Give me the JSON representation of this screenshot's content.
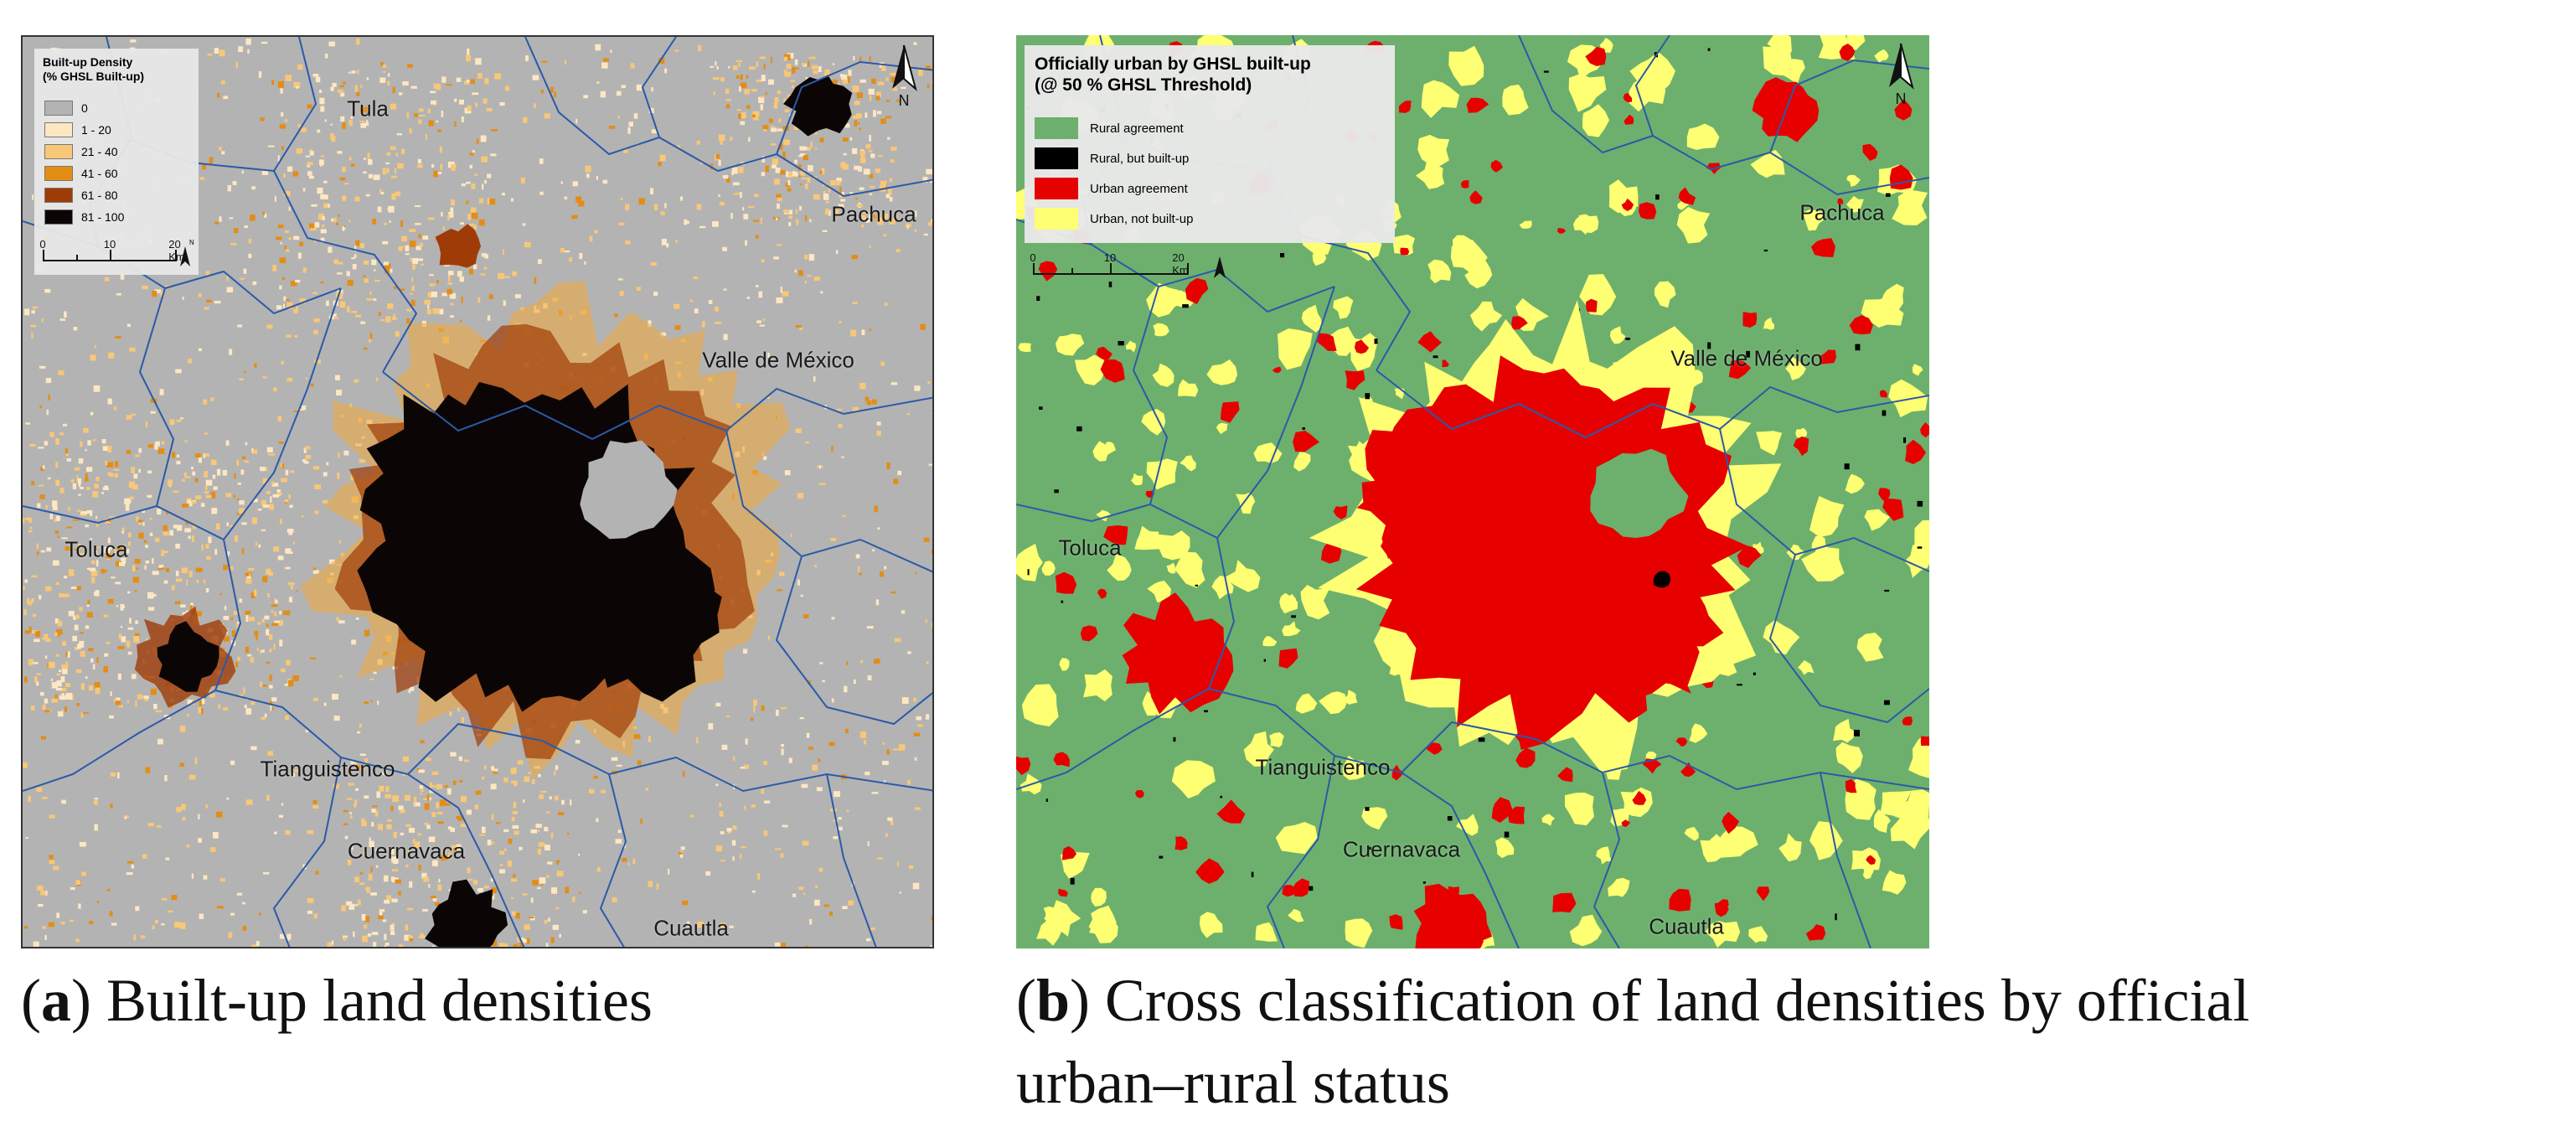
{
  "panel_a": {
    "legend": {
      "title": "Built-up Density\n(% GHSL Built-up)",
      "items": [
        {
          "label": "0",
          "color": "#b3b3b3"
        },
        {
          "label": "1 - 20",
          "color": "#fde7c2"
        },
        {
          "label": "21 - 40",
          "color": "#f8c777"
        },
        {
          "label": "41 - 60",
          "color": "#e48d14"
        },
        {
          "label": "61 - 80",
          "color": "#9f3b07"
        },
        {
          "label": "81 - 100",
          "color": "#0b0605"
        }
      ]
    },
    "scale": {
      "ticks": [
        "0",
        "10",
        "20 Km"
      ],
      "north": "N"
    },
    "north_label": "N",
    "places": [
      "Tula",
      "Pachuca",
      "Valle de México",
      "Toluca",
      "Tianguistenco",
      "Cuernavaca",
      "Cuautla"
    ],
    "background_color": "#b3b3b3",
    "boundary_color": "#2b5aa8"
  },
  "panel_b": {
    "legend": {
      "title": "Officially urban by GHSL built-up\n(@ 50 % GHSL Threshold)",
      "items": [
        {
          "label": "Rural agreement",
          "color": "#6db06d"
        },
        {
          "label": "Rural, but built-up",
          "color": "#000000"
        },
        {
          "label": "Urban agreement",
          "color": "#e60000"
        },
        {
          "label": "Urban, not built-up",
          "color": "#ffff73"
        }
      ]
    },
    "scale": {
      "ticks": [
        "0",
        "10",
        "20 Km"
      ]
    },
    "north_label": "N",
    "places": [
      "Pachuca",
      "Valle de México",
      "Toluca",
      "Tianguistenco",
      "Cuernavaca",
      "Cuautla"
    ],
    "background_color": "#6db06d",
    "boundary_color": "#2b5aa8"
  },
  "captions": {
    "a_letter": "a",
    "a_text": "Built-up land densities",
    "b_letter": "b",
    "b_text_line1": "Cross classification of land densities by official",
    "b_text_line2": "urban–rural status"
  }
}
